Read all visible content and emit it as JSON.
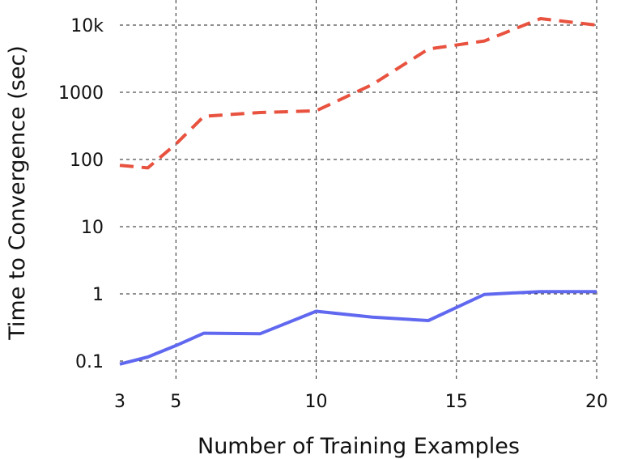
{
  "chart_data": {
    "type": "line",
    "title": "",
    "xlabel": "Number of Training Examples",
    "ylabel": "Time to Convergence (sec)",
    "xlim": [
      3,
      20
    ],
    "ylim": [
      0.07,
      20000
    ],
    "yscale": "log",
    "grid": true,
    "legend": "none",
    "x_ticks": [
      {
        "value": 3,
        "label": "3"
      },
      {
        "value": 5,
        "label": "5"
      },
      {
        "value": 10,
        "label": "10"
      },
      {
        "value": 15,
        "label": "15"
      },
      {
        "value": 20,
        "label": "20"
      }
    ],
    "y_ticks": [
      {
        "value": 0.1,
        "label": "0.1"
      },
      {
        "value": 1,
        "label": "1"
      },
      {
        "value": 10,
        "label": "10"
      },
      {
        "value": 100,
        "label": "100"
      },
      {
        "value": 1000,
        "label": "1000"
      },
      {
        "value": 10000,
        "label": "10k"
      }
    ],
    "series": [
      {
        "color": "#e8523f",
        "style": "dashed",
        "x": [
          3,
          4,
          5,
          6,
          8,
          10,
          12,
          14,
          16,
          18,
          20
        ],
        "y": [
          82,
          75,
          170,
          440,
          500,
          530,
          1300,
          4400,
          5800,
          12500,
          10000
        ]
      },
      {
        "color": "#6068f0",
        "style": "solid",
        "x": [
          3,
          4,
          5,
          6,
          8,
          10,
          12,
          14,
          16,
          18,
          20
        ],
        "y": [
          0.09,
          0.115,
          0.17,
          0.26,
          0.255,
          0.55,
          0.45,
          0.4,
          0.98,
          1.08,
          1.08
        ]
      }
    ]
  }
}
